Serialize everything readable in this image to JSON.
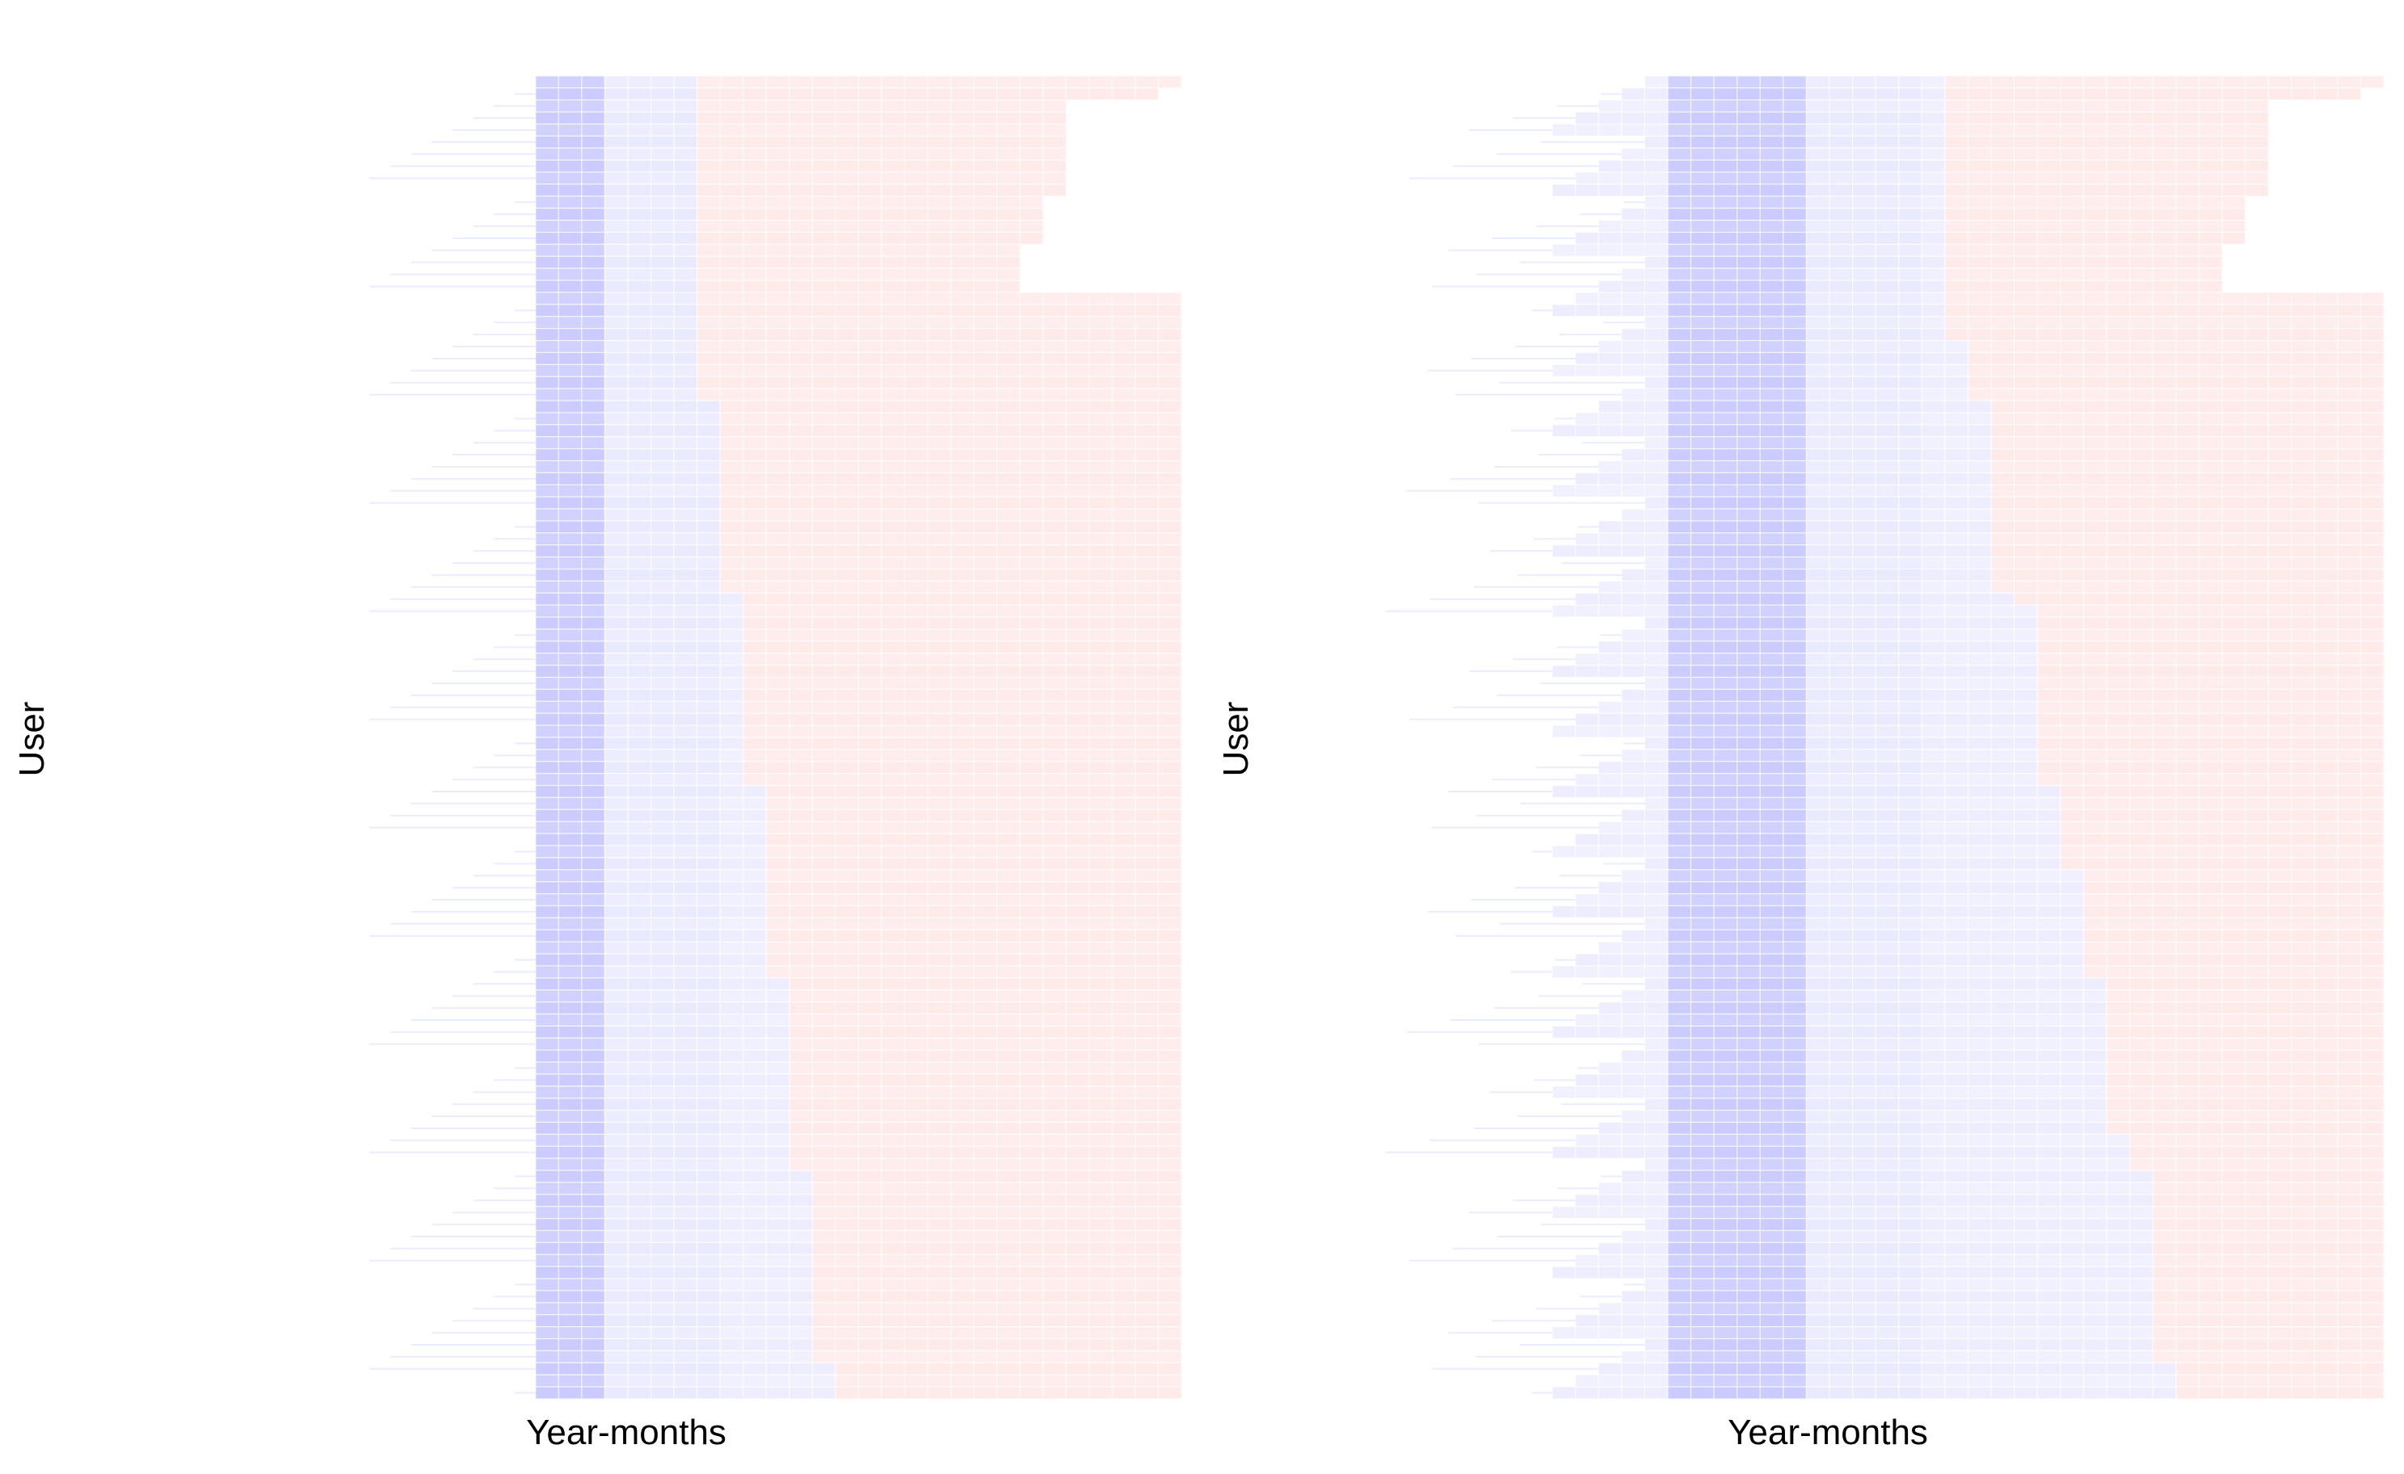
{
  "colors": {
    "background": "#ffffff",
    "base_blue": "#0000ff",
    "base_red": "#ff0000",
    "grid_line": "#ffffff"
  },
  "chart_data": [
    {
      "type": "heatmap",
      "panel": "left",
      "title": "",
      "xlabel": "Year-months",
      "ylabel": "User",
      "x_tick_labels": false,
      "y_tick_labels": false,
      "grid": false,
      "legend": "none",
      "n_columns": 48,
      "n_rows": 110,
      "zones": {
        "dense_blue_cols": [
          17,
          22
        ],
        "light_blue_cols": [
          23,
          27
        ],
        "encoding": "blue = columns before each row's boundary column; red = columns from the boundary to the row's end column; deeper blue in the dense band"
      },
      "row_start_cols": [
        20,
        20,
        20,
        20,
        20,
        20,
        20,
        20,
        20,
        20,
        20,
        20,
        20,
        20,
        20,
        20,
        20,
        20,
        20,
        20,
        20,
        20,
        20,
        20,
        20,
        20,
        20,
        20,
        20,
        20,
        20,
        20,
        20,
        20,
        20,
        20,
        20,
        20,
        20,
        20,
        20,
        20,
        20,
        20,
        20,
        20,
        20,
        20,
        20,
        20,
        20,
        20,
        20,
        20,
        20,
        20,
        20,
        20,
        20,
        20,
        20,
        20,
        20,
        20,
        20,
        20,
        20,
        20,
        20,
        20,
        20,
        20,
        20,
        20,
        20,
        20,
        20,
        20,
        20,
        20,
        20,
        20,
        20,
        20,
        20,
        20,
        20,
        20,
        20,
        20,
        20,
        20,
        20,
        20,
        20,
        20,
        20,
        20,
        20,
        20,
        20,
        20,
        20,
        20,
        20,
        20,
        20,
        20,
        20,
        20
      ],
      "row_boundary_cols": [
        27,
        27,
        27,
        27,
        27,
        27,
        27,
        27,
        27,
        27,
        27,
        27,
        27,
        27,
        27,
        27,
        27,
        27,
        27,
        27,
        27,
        27,
        27,
        27,
        27,
        27,
        27,
        28,
        28,
        28,
        28,
        28,
        28,
        28,
        28,
        28,
        28,
        28,
        28,
        28,
        28,
        28,
        28,
        29,
        29,
        29,
        29,
        29,
        29,
        29,
        29,
        29,
        29,
        29,
        29,
        29,
        29,
        29,
        29,
        30,
        30,
        30,
        30,
        30,
        30,
        30,
        30,
        30,
        30,
        30,
        30,
        30,
        30,
        30,
        30,
        31,
        31,
        31,
        31,
        31,
        31,
        31,
        31,
        31,
        31,
        31,
        31,
        31,
        31,
        31,
        31,
        32,
        32,
        32,
        32,
        32,
        32,
        32,
        32,
        32,
        32,
        32,
        32,
        32,
        32,
        32,
        32,
        33,
        33,
        33
      ],
      "row_end_cols": [
        48,
        47,
        43,
        43,
        43,
        43,
        43,
        43,
        43,
        43,
        42,
        42,
        42,
        42,
        41,
        41,
        41,
        41,
        48,
        48,
        48,
        48,
        48,
        48,
        48,
        48,
        48,
        48,
        48,
        48,
        48,
        48,
        48,
        48,
        48,
        48,
        48,
        48,
        48,
        48,
        48,
        48,
        48,
        48,
        48,
        48,
        48,
        48,
        48,
        48,
        48,
        48,
        48,
        48,
        48,
        48,
        48,
        48,
        48,
        48,
        48,
        48,
        48,
        48,
        48,
        48,
        48,
        48,
        48,
        48,
        48,
        48,
        48,
        48,
        48,
        48,
        48,
        48,
        48,
        48,
        48,
        48,
        48,
        48,
        48,
        48,
        48,
        48,
        48,
        48,
        48,
        48,
        48,
        48,
        48,
        48,
        48,
        48,
        48,
        48,
        48,
        48,
        48,
        48,
        48,
        48,
        48,
        48,
        48,
        48
      ]
    },
    {
      "type": "heatmap",
      "panel": "right",
      "title": "",
      "xlabel": "Year-months",
      "ylabel": "User",
      "x_tick_labels": false,
      "y_tick_labels": false,
      "grid": false,
      "legend": "none",
      "n_columns": 48,
      "n_rows": 110,
      "zones": {
        "dense_blue_cols": [
          17,
          22
        ],
        "light_blue_cols": [
          23,
          27
        ],
        "encoding": "blue = columns before each row's boundary column; red = columns from the boundary to the row's end column; deeper blue in the dense band"
      }
    }
  ]
}
